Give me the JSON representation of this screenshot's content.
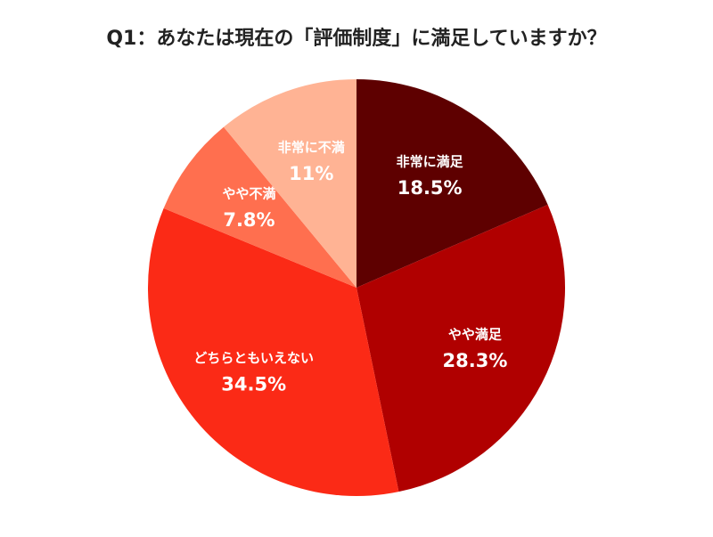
{
  "chart_data": {
    "type": "pie",
    "title": "Q1：あなたは現在の「評価制度」に満足していますか？",
    "categories": [
      "非常に満足",
      "やや満足",
      "どちらともいえない",
      "やや不満",
      "非常に不満"
    ],
    "values": [
      18.5,
      28.3,
      34.5,
      7.8,
      11
    ],
    "value_labels": [
      "18.5%",
      "28.3%",
      "34.5%",
      "7.8%",
      "11%"
    ],
    "colors": [
      "#5e0000",
      "#b00000",
      "#fb2a16",
      "#ff6f4f",
      "#ffb394"
    ]
  }
}
